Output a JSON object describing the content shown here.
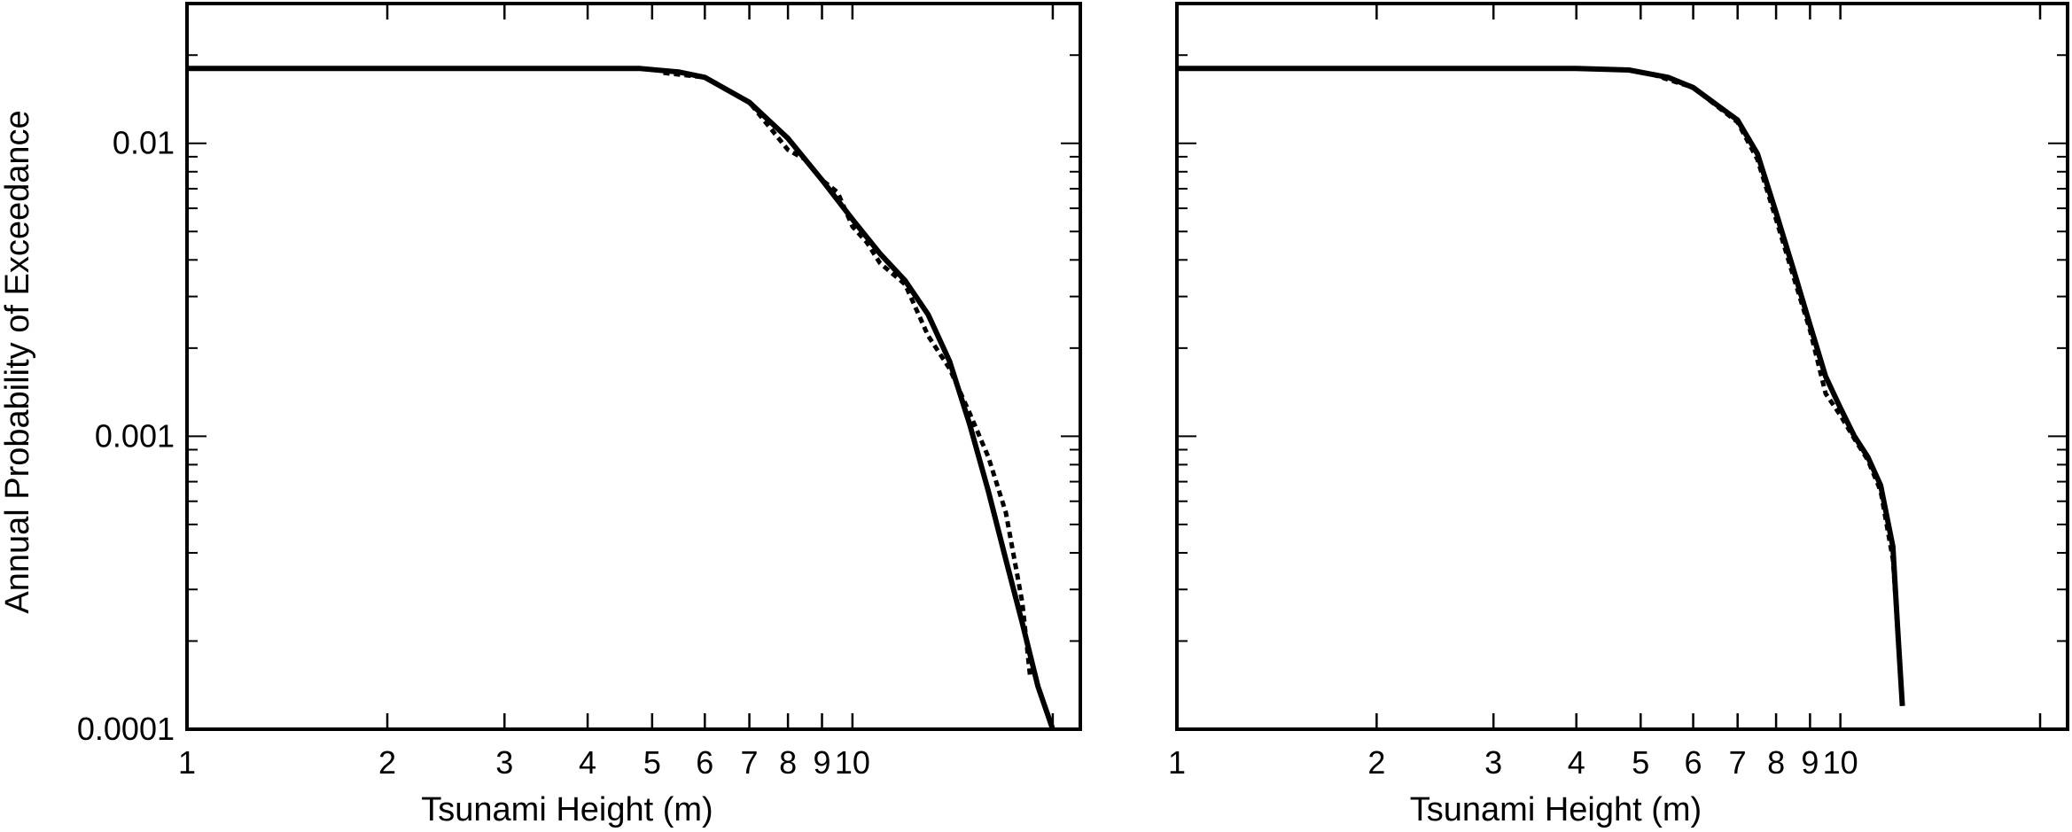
{
  "chart_data": [
    {
      "type": "line",
      "title": "",
      "xlabel": "Tsunami Height (m)",
      "ylabel": "Annual Probability of Exceedance",
      "xscale": "log",
      "yscale": "log",
      "xlim": [
        1,
        22
      ],
      "ylim": [
        0.0001,
        0.03
      ],
      "x_tick_labels": [
        "1",
        "2",
        "3",
        "4",
        "5",
        "6",
        "7",
        "8",
        "9",
        "10"
      ],
      "x_tick_values": [
        1,
        2,
        3,
        4,
        5,
        6,
        7,
        8,
        9,
        10
      ],
      "y_tick_labels": [
        "0.0001",
        "0.001",
        "0.01"
      ],
      "y_tick_values": [
        0.0001,
        0.001,
        0.01
      ],
      "series": [
        {
          "style": "solid",
          "x": [
            1,
            2,
            3,
            4,
            4.8,
            5.5,
            6,
            7,
            8,
            9,
            10,
            11,
            12,
            13,
            14,
            15,
            16,
            17,
            18,
            19,
            20
          ],
          "y": [
            0.018,
            0.018,
            0.018,
            0.018,
            0.018,
            0.0175,
            0.0168,
            0.0138,
            0.0104,
            0.0075,
            0.0055,
            0.0042,
            0.0034,
            0.0026,
            0.0018,
            0.0011,
            0.00065,
            0.00038,
            0.00023,
            0.00014,
            0.0001
          ]
        },
        {
          "style": "dotted",
          "x": [
            5.2,
            6,
            7,
            8,
            8.5,
            9,
            9.5,
            10,
            10.5,
            11,
            12,
            13,
            14,
            15,
            16,
            17,
            18,
            18.5
          ],
          "y": [
            0.0174,
            0.0168,
            0.0138,
            0.0095,
            0.0088,
            0.0075,
            0.0068,
            0.0052,
            0.0046,
            0.0039,
            0.0033,
            0.0022,
            0.0017,
            0.0012,
            0.00085,
            0.00055,
            0.00027,
            0.00015
          ]
        }
      ],
      "grid": false,
      "legend": "none"
    },
    {
      "type": "line",
      "title": "",
      "xlabel": "Tsunami Height (m)",
      "ylabel": "",
      "xscale": "log",
      "yscale": "log",
      "xlim": [
        1,
        22
      ],
      "ylim": [
        0.0001,
        0.03
      ],
      "x_tick_labels": [
        "1",
        "2",
        "3",
        "4",
        "5",
        "6",
        "7",
        "8",
        "9",
        "10"
      ],
      "x_tick_values": [
        1,
        2,
        3,
        4,
        5,
        6,
        7,
        8,
        9,
        10
      ],
      "y_tick_values": [
        0.0001,
        0.001,
        0.01
      ],
      "series": [
        {
          "style": "solid",
          "x": [
            1,
            2,
            3,
            4,
            4.8,
            5.5,
            6,
            7,
            7.5,
            8,
            8.5,
            9,
            9.5,
            10,
            10.5,
            11,
            11.5,
            12,
            12.2,
            12.4
          ],
          "y": [
            0.018,
            0.018,
            0.018,
            0.018,
            0.0178,
            0.0168,
            0.0155,
            0.012,
            0.0092,
            0.0058,
            0.0037,
            0.0024,
            0.0016,
            0.00125,
            0.001,
            0.00085,
            0.00068,
            0.00042,
            0.00022,
            0.00012
          ]
        },
        {
          "style": "dotted",
          "x": [
            5.2,
            6,
            7,
            7.5,
            8,
            8.5,
            9,
            9.5,
            10,
            10.5,
            11,
            11.5,
            12,
            12.2
          ],
          "y": [
            0.0172,
            0.0155,
            0.0118,
            0.0088,
            0.0055,
            0.0035,
            0.0023,
            0.0014,
            0.00118,
            0.00098,
            0.00083,
            0.00065,
            0.00038,
            0.00022
          ]
        }
      ],
      "grid": false,
      "legend": "none"
    }
  ]
}
